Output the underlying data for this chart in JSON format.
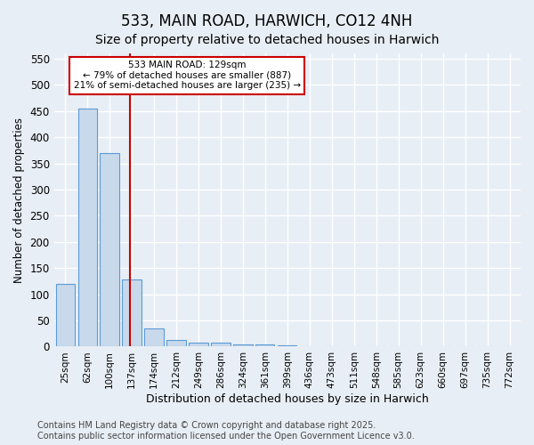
{
  "title": "533, MAIN ROAD, HARWICH, CO12 4NH",
  "subtitle": "Size of property relative to detached houses in Harwich",
  "xlabel": "Distribution of detached houses by size in Harwich",
  "ylabel": "Number of detached properties",
  "bins": [
    "25sqm",
    "62sqm",
    "100sqm",
    "137sqm",
    "174sqm",
    "212sqm",
    "249sqm",
    "286sqm",
    "324sqm",
    "361sqm",
    "399sqm",
    "436sqm",
    "473sqm",
    "511sqm",
    "548sqm",
    "585sqm",
    "623sqm",
    "660sqm",
    "697sqm",
    "735sqm",
    "772sqm"
  ],
  "values": [
    120,
    455,
    370,
    128,
    35,
    12,
    8,
    7,
    5,
    5,
    2,
    1,
    1,
    1,
    1,
    0,
    0,
    0,
    0,
    0,
    0
  ],
  "bar_color": "#c9d9ec",
  "bar_edgecolor": "#5b9bd5",
  "vline_pos": 2.925,
  "vline_color": "#cc0000",
  "annotation_text": "533 MAIN ROAD: 129sqm\n← 79% of detached houses are smaller (887)\n21% of semi-detached houses are larger (235) →",
  "annotation_box_edgecolor": "#cc0000",
  "annotation_box_facecolor": "white",
  "ylim": [
    0,
    560
  ],
  "yticks": [
    0,
    50,
    100,
    150,
    200,
    250,
    300,
    350,
    400,
    450,
    500,
    550
  ],
  "background_color": "#e8eef5",
  "grid_color": "white",
  "title_fontsize": 12,
  "subtitle_fontsize": 10,
  "footer_text": "Contains HM Land Registry data © Crown copyright and database right 2025.\nContains public sector information licensed under the Open Government Licence v3.0.",
  "footer_fontsize": 7
}
